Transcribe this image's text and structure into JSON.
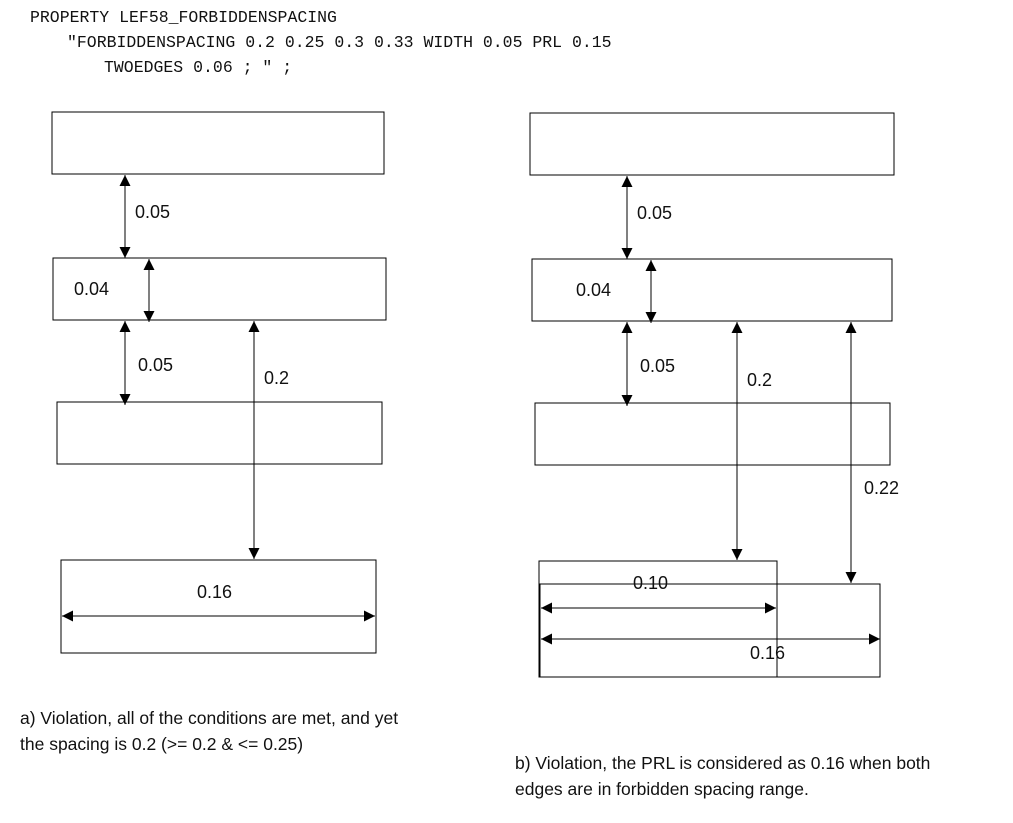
{
  "header": {
    "line1": "PROPERTY LEF58_FORBIDDENSPACING",
    "line2": "\"FORBIDDENSPACING 0.2 0.25 0.3 0.33 WIDTH 0.05 PRL 0.15",
    "line3": "TWOEDGES 0.06 ; \" ;"
  },
  "diagram_a": {
    "label_top_spacing": "0.05",
    "label_width": "0.04",
    "label_mid_spacing": "0.05",
    "label_spacing": "0.2",
    "label_prl": "0.16",
    "caption_line1": "a) Violation, all of the conditions are met, and yet",
    "caption_line2": "the spacing is 0.2 (>= 0.2 & <= 0.25)"
  },
  "diagram_b": {
    "label_top_spacing": "0.05",
    "label_width": "0.04",
    "label_mid_spacing": "0.05",
    "label_spacing_1": "0.2",
    "label_spacing_2": "0.22",
    "label_prl_1": "0.10",
    "label_prl_2": "0.16",
    "caption_line1": "b) Violation, the PRL is considered as 0.16 when both",
    "caption_line2": "edges are in forbidden spacing range."
  }
}
